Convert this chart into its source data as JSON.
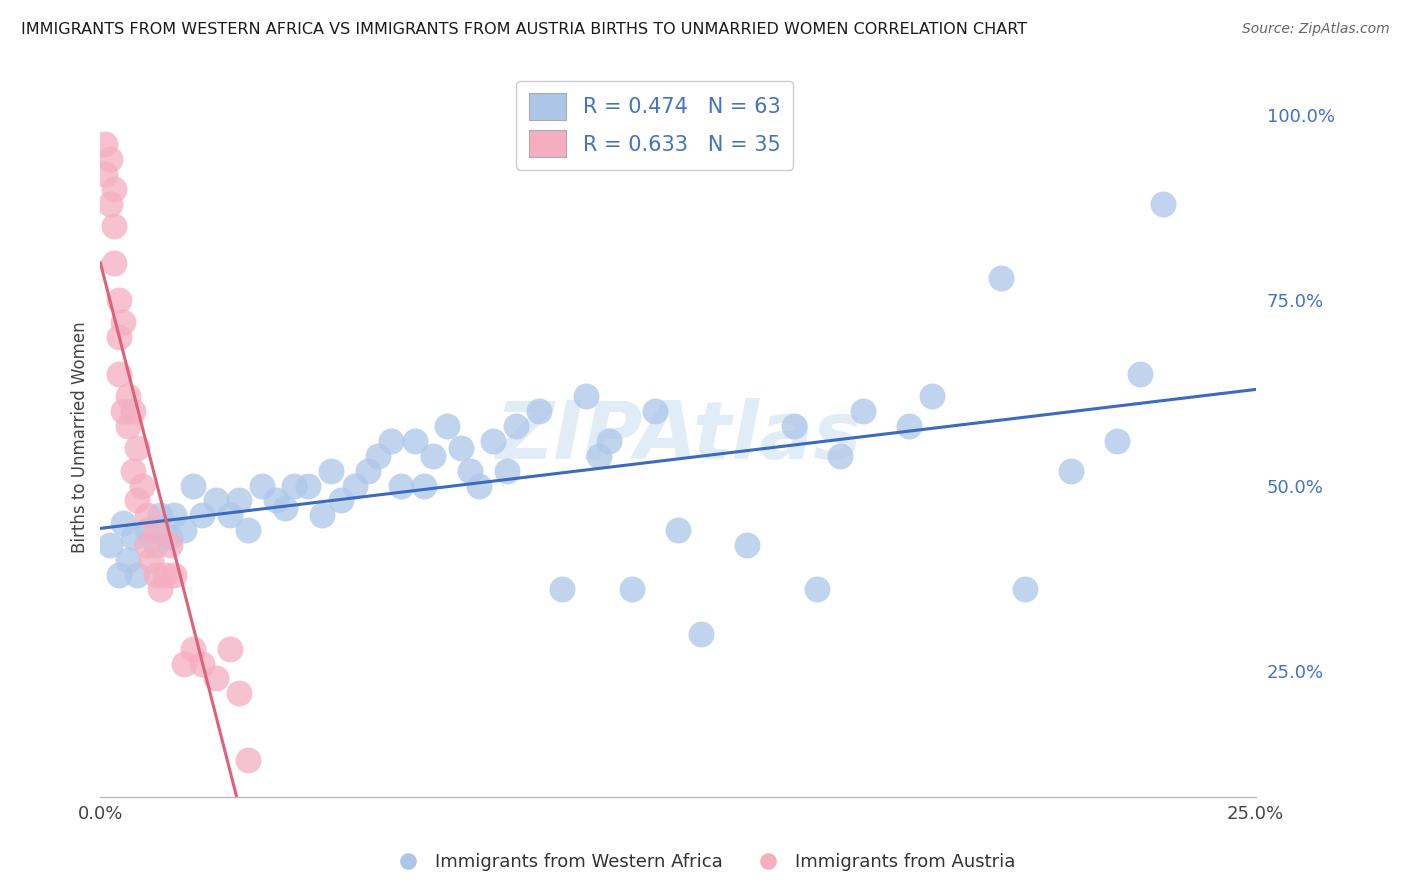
{
  "title": "IMMIGRANTS FROM WESTERN AFRICA VS IMMIGRANTS FROM AUSTRIA BIRTHS TO UNMARRIED WOMEN CORRELATION CHART",
  "source": "Source: ZipAtlas.com",
  "xlabel_blue": "Immigrants from Western Africa",
  "xlabel_pink": "Immigrants from Austria",
  "ylabel": "Births to Unmarried Women",
  "watermark": "ZIPAtlas",
  "blue_R": 0.474,
  "blue_N": 63,
  "pink_R": 0.633,
  "pink_N": 35,
  "blue_color": "#adc6e8",
  "pink_color": "#f4aec0",
  "blue_line_color": "#3a6bbf",
  "pink_line_color": "#e0607a",
  "xlim": [
    0.0,
    0.25
  ],
  "ylim": [
    0.08,
    1.05
  ],
  "blue_scatter_x": [
    0.002,
    0.004,
    0.005,
    0.006,
    0.007,
    0.008,
    0.01,
    0.012,
    0.013,
    0.015,
    0.016,
    0.018,
    0.02,
    0.022,
    0.025,
    0.028,
    0.03,
    0.032,
    0.035,
    0.038,
    0.04,
    0.042,
    0.045,
    0.048,
    0.05,
    0.052,
    0.055,
    0.058,
    0.06,
    0.063,
    0.065,
    0.068,
    0.07,
    0.072,
    0.075,
    0.078,
    0.08,
    0.082,
    0.085,
    0.088,
    0.09,
    0.095,
    0.1,
    0.105,
    0.108,
    0.11,
    0.115,
    0.12,
    0.125,
    0.13,
    0.14,
    0.15,
    0.155,
    0.16,
    0.165,
    0.175,
    0.18,
    0.195,
    0.2,
    0.21,
    0.22,
    0.225,
    0.23
  ],
  "blue_scatter_y": [
    0.42,
    0.38,
    0.45,
    0.4,
    0.43,
    0.38,
    0.44,
    0.42,
    0.46,
    0.43,
    0.46,
    0.44,
    0.5,
    0.46,
    0.48,
    0.46,
    0.48,
    0.44,
    0.5,
    0.48,
    0.47,
    0.5,
    0.5,
    0.46,
    0.52,
    0.48,
    0.5,
    0.52,
    0.54,
    0.56,
    0.5,
    0.56,
    0.5,
    0.54,
    0.58,
    0.55,
    0.52,
    0.5,
    0.56,
    0.52,
    0.58,
    0.6,
    0.36,
    0.62,
    0.54,
    0.56,
    0.36,
    0.6,
    0.44,
    0.3,
    0.42,
    0.58,
    0.36,
    0.54,
    0.6,
    0.58,
    0.62,
    0.78,
    0.36,
    0.52,
    0.56,
    0.65,
    0.88
  ],
  "pink_scatter_x": [
    0.001,
    0.001,
    0.002,
    0.002,
    0.003,
    0.003,
    0.003,
    0.004,
    0.004,
    0.004,
    0.005,
    0.005,
    0.006,
    0.006,
    0.007,
    0.007,
    0.008,
    0.008,
    0.009,
    0.01,
    0.01,
    0.011,
    0.012,
    0.012,
    0.013,
    0.014,
    0.015,
    0.016,
    0.018,
    0.02,
    0.022,
    0.025,
    0.028,
    0.03,
    0.032
  ],
  "pink_scatter_y": [
    0.96,
    0.92,
    0.94,
    0.88,
    0.9,
    0.85,
    0.8,
    0.7,
    0.65,
    0.75,
    0.6,
    0.72,
    0.62,
    0.58,
    0.6,
    0.52,
    0.55,
    0.48,
    0.5,
    0.46,
    0.42,
    0.4,
    0.44,
    0.38,
    0.36,
    0.38,
    0.42,
    0.38,
    0.26,
    0.28,
    0.26,
    0.24,
    0.28,
    0.22,
    0.13
  ],
  "ytick_values": [
    0.25,
    0.5,
    0.75,
    1.0
  ],
  "ytick_labels": [
    "25.0%",
    "50.0%",
    "75.0%",
    "100.0%"
  ],
  "xtick_values": [
    0.0,
    0.05,
    0.1,
    0.15,
    0.2,
    0.25
  ],
  "xtick_labels": [
    "0.0%",
    "",
    "",
    "",
    "",
    "25.0%"
  ]
}
